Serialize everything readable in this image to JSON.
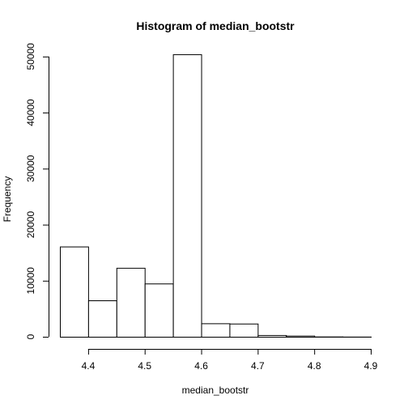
{
  "chart_data": {
    "type": "bar",
    "title": "Histogram of median_bootstr",
    "xlabel": "median_bootstr",
    "ylabel": "Frequency",
    "x_ticks": [
      "4.4",
      "4.5",
      "4.6",
      "4.7",
      "4.8",
      "4.9"
    ],
    "y_ticks": [
      "0",
      "10000",
      "20000",
      "30000",
      "40000",
      "50000"
    ],
    "xlim": [
      4.35,
      4.9
    ],
    "ylim": [
      0,
      52000
    ],
    "grid": false,
    "bins": [
      {
        "start": 4.35,
        "end": 4.4,
        "count": 16100
      },
      {
        "start": 4.4,
        "end": 4.45,
        "count": 6500
      },
      {
        "start": 4.45,
        "end": 4.5,
        "count": 12300
      },
      {
        "start": 4.5,
        "end": 4.55,
        "count": 9500
      },
      {
        "start": 4.55,
        "end": 4.6,
        "count": 50400
      },
      {
        "start": 4.6,
        "end": 4.65,
        "count": 2400
      },
      {
        "start": 4.65,
        "end": 4.7,
        "count": 2350
      },
      {
        "start": 4.7,
        "end": 4.75,
        "count": 300
      },
      {
        "start": 4.75,
        "end": 4.8,
        "count": 200
      },
      {
        "start": 4.8,
        "end": 4.85,
        "count": 40
      },
      {
        "start": 4.85,
        "end": 4.9,
        "count": 20
      }
    ]
  }
}
